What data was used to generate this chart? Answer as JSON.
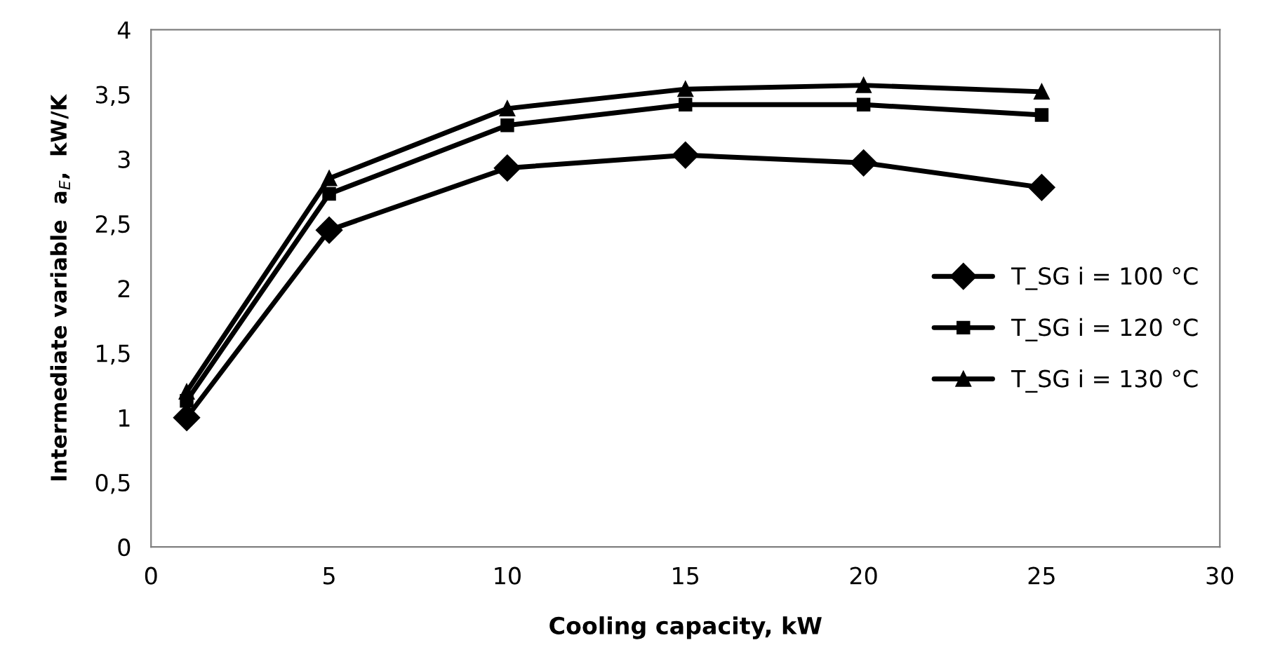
{
  "chart_data": {
    "type": "line",
    "xlabel": "Cooling capacity, kW",
    "ylabel": "Intermediate variable  a$_{E}$,  kW/K",
    "x": [
      1,
      5,
      10,
      15,
      20,
      25
    ],
    "series": [
      {
        "name": "T_SG i = 100 °C",
        "color": "#000000",
        "marker": "diamond",
        "values": [
          1.0,
          2.45,
          2.93,
          3.03,
          2.97,
          2.78
        ]
      },
      {
        "name": "T_SG i = 120 °C",
        "color": "#000000",
        "marker": "square",
        "values": [
          1.13,
          2.73,
          3.26,
          3.42,
          3.42,
          3.34
        ]
      },
      {
        "name": "T_SG i = 130 °C",
        "color": "#000000",
        "marker": "triangle",
        "values": [
          1.2,
          2.85,
          3.39,
          3.54,
          3.57,
          3.52
        ]
      }
    ],
    "xlim": [
      0,
      30
    ],
    "xticks": [
      0,
      5,
      10,
      15,
      20,
      25,
      30
    ],
    "ylim": [
      0,
      4
    ],
    "yticks": [
      0,
      {
        "value": 0.5,
        "label": "0,5"
      },
      1,
      {
        "value": 1.5,
        "label": "1,5"
      },
      2,
      {
        "value": 2.5,
        "label": "2,5"
      },
      3,
      {
        "value": 3.5,
        "label": "3,5"
      },
      4
    ],
    "grid": false,
    "legend": "right",
    "line_style": "solid"
  }
}
